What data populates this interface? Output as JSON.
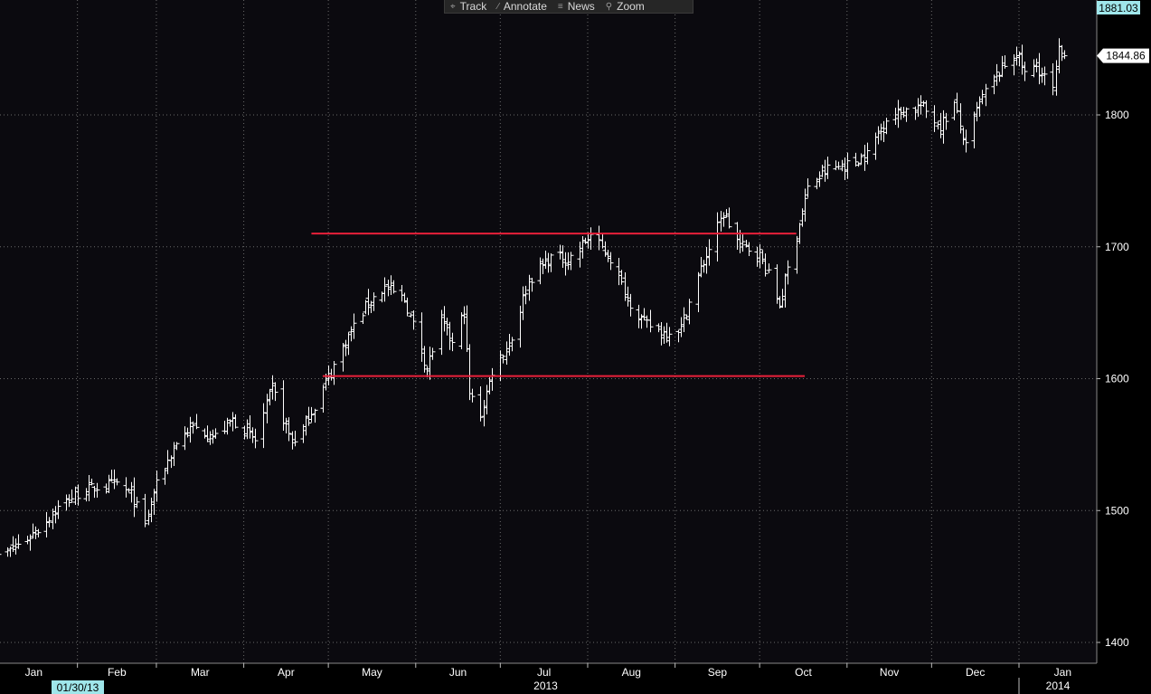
{
  "toolbar": {
    "items": [
      {
        "label": "Track",
        "icon": "crosshair-icon",
        "glyph": "⌖"
      },
      {
        "label": "Annotate",
        "icon": "pencil-icon",
        "glyph": "∕"
      },
      {
        "label": "News",
        "icon": "news-icon",
        "glyph": "≡"
      },
      {
        "label": "Zoom",
        "icon": "magnifier-icon",
        "glyph": "⚲"
      }
    ]
  },
  "price_high_label": "1881.03",
  "price_last_label": "1844.86",
  "colors": {
    "background": "#0b0a0f",
    "bars": "#ffffff",
    "grid": "#6a6a6a",
    "trendline": "#e8203a",
    "date_highlight": "#9fe6ea"
  },
  "chart_data": {
    "type": "ohlc",
    "ylim": [
      1390,
      1895
    ],
    "y_ticks": [
      1400,
      1500,
      1600,
      1700,
      1800
    ],
    "x_month_labels": [
      "Jan",
      "Feb",
      "Mar",
      "Apr",
      "May",
      "Jun",
      "Jul",
      "Aug",
      "Sep",
      "Oct",
      "Nov",
      "Dec",
      "Jan"
    ],
    "x_year_labels": [
      "2013",
      "2014"
    ],
    "cursor_date": "01/30/13",
    "grid": true,
    "close_series_anchors": [
      [
        "2013-01-02",
        1462
      ],
      [
        "2013-01-10",
        1472
      ],
      [
        "2013-01-18",
        1486
      ],
      [
        "2013-01-25",
        1502
      ],
      [
        "2013-02-01",
        1513
      ],
      [
        "2013-02-08",
        1518
      ],
      [
        "2013-02-15",
        1520
      ],
      [
        "2013-02-20",
        1512
      ],
      [
        "2013-02-25",
        1488
      ],
      [
        "2013-02-28",
        1514
      ],
      [
        "2013-03-08",
        1552
      ],
      [
        "2013-03-14",
        1563
      ],
      [
        "2013-03-22",
        1556
      ],
      [
        "2013-03-28",
        1569
      ],
      [
        "2013-04-05",
        1553
      ],
      [
        "2013-04-11",
        1593
      ],
      [
        "2013-04-18",
        1552
      ],
      [
        "2013-04-22",
        1562
      ],
      [
        "2013-04-30",
        1597
      ],
      [
        "2013-05-08",
        1632
      ],
      [
        "2013-05-15",
        1658
      ],
      [
        "2013-05-21",
        1669
      ],
      [
        "2013-05-28",
        1660
      ],
      [
        "2013-06-05",
        1608
      ],
      [
        "2013-06-10",
        1643
      ],
      [
        "2013-06-14",
        1626
      ],
      [
        "2013-06-18",
        1651
      ],
      [
        "2013-06-20",
        1588
      ],
      [
        "2013-06-24",
        1573
      ],
      [
        "2013-06-28",
        1606
      ],
      [
        "2013-07-05",
        1631
      ],
      [
        "2013-07-11",
        1675
      ],
      [
        "2013-07-19",
        1692
      ],
      [
        "2013-07-25",
        1690
      ],
      [
        "2013-08-02",
        1709
      ],
      [
        "2013-08-09",
        1691
      ],
      [
        "2013-08-15",
        1661
      ],
      [
        "2013-08-21",
        1642
      ],
      [
        "2013-08-28",
        1635
      ],
      [
        "2013-09-03",
        1639
      ],
      [
        "2013-09-10",
        1683
      ],
      [
        "2013-09-18",
        1725
      ],
      [
        "2013-09-24",
        1701
      ],
      [
        "2013-10-01",
        1695
      ],
      [
        "2013-10-08",
        1656
      ],
      [
        "2013-10-14",
        1710
      ],
      [
        "2013-10-18",
        1744
      ],
      [
        "2013-10-25",
        1759
      ],
      [
        "2013-11-01",
        1762
      ],
      [
        "2013-11-08",
        1770
      ],
      [
        "2013-11-15",
        1798
      ],
      [
        "2013-11-22",
        1804
      ],
      [
        "2013-11-27",
        1807
      ],
      [
        "2013-12-04",
        1792
      ],
      [
        "2013-12-09",
        1808
      ],
      [
        "2013-12-13",
        1775
      ],
      [
        "2013-12-18",
        1810
      ],
      [
        "2013-12-23",
        1827
      ],
      [
        "2013-12-31",
        1848
      ],
      [
        "2014-01-03",
        1831
      ],
      [
        "2014-01-07",
        1837
      ],
      [
        "2014-01-13",
        1819
      ],
      [
        "2014-01-15",
        1848
      ],
      [
        "2014-01-17",
        1844.86
      ]
    ],
    "resistance_line": {
      "y": 1710,
      "from": "2013-04-25",
      "to": "2013-10-14"
    },
    "support_line": {
      "y": 1602,
      "from": "2013-04-29",
      "to": "2013-10-17"
    }
  }
}
